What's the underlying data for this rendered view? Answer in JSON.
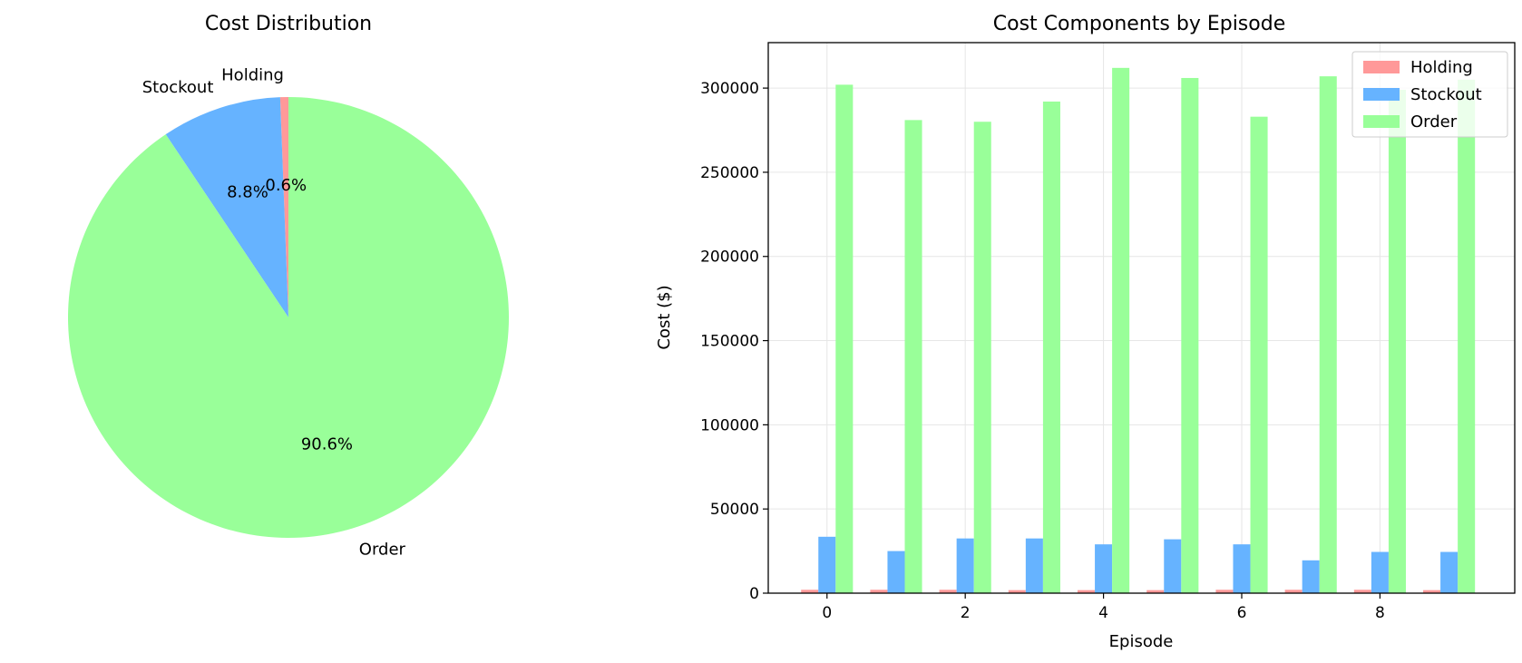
{
  "chart_data": [
    {
      "type": "pie",
      "title": "Cost Distribution",
      "slices": [
        {
          "label": "Holding",
          "value": 0.6,
          "pct_label": "0.6%",
          "color": "#ff9999"
        },
        {
          "label": "Stockout",
          "value": 8.8,
          "pct_label": "8.8%",
          "color": "#66b3ff"
        },
        {
          "label": "Order",
          "value": 90.6,
          "pct_label": "90.6%",
          "color": "#99ff99"
        }
      ],
      "start_angle_deg": 90,
      "direction": "counterclockwise"
    },
    {
      "type": "bar",
      "title": "Cost Components by Episode",
      "xlabel": "Episode",
      "ylabel": "Cost ($)",
      "categories": [
        0,
        1,
        2,
        3,
        4,
        5,
        6,
        7,
        8,
        9
      ],
      "x_ticks": [
        "0",
        "2",
        "4",
        "6",
        "8"
      ],
      "y_ticks": [
        "0",
        "50000",
        "100000",
        "150000",
        "200000",
        "250000",
        "300000"
      ],
      "ylim": [
        0,
        327000
      ],
      "xlim": [
        -0.85,
        9.95
      ],
      "grid": true,
      "legend_position": "top-right",
      "series": [
        {
          "name": "Holding",
          "color": "#ff9999",
          "values": [
            2000,
            2000,
            2000,
            1800,
            1800,
            1800,
            2000,
            2000,
            2000,
            1800
          ]
        },
        {
          "name": "Stockout",
          "color": "#66b3ff",
          "values": [
            33500,
            25000,
            32500,
            32500,
            29000,
            32000,
            29000,
            19500,
            24500,
            24500
          ]
        },
        {
          "name": "Order",
          "color": "#99ff99",
          "values": [
            302000,
            281000,
            280000,
            292000,
            312000,
            306000,
            283000,
            307000,
            299000,
            305000
          ]
        }
      ]
    }
  ]
}
